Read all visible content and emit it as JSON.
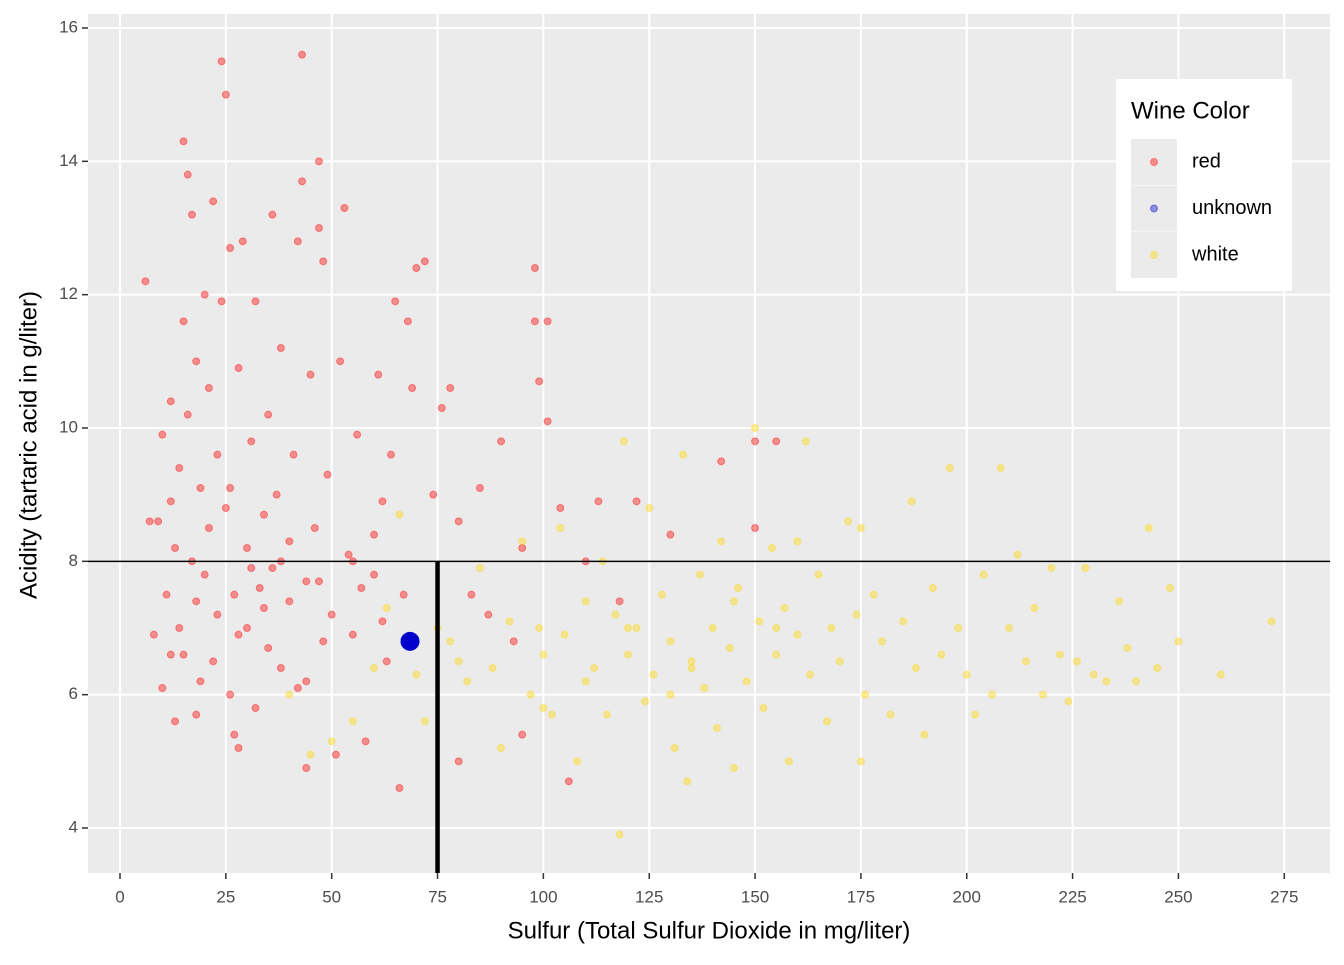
{
  "chart_data": {
    "type": "scatter",
    "x_label": "Sulfur (Total Sulfur Dioxide  in mg/liter)",
    "y_label": "Acidity (tartaric acid in g/liter)",
    "xlim": [
      -7.56,
      285.8
    ],
    "ylim": [
      3.325,
      16.21
    ],
    "xticks": [
      0,
      25,
      50,
      75,
      100,
      125,
      150,
      175,
      200,
      225,
      250,
      275
    ],
    "yticks": [
      4,
      6,
      8,
      10,
      12,
      14,
      16
    ],
    "grid": true,
    "legend": {
      "title": "Wine Color",
      "position": "top-right"
    },
    "reference_lines": {
      "hline": 8,
      "vline": {
        "x": 75,
        "ymax": 8
      }
    },
    "series": [
      {
        "name": "red",
        "color": "#ff0000",
        "opacity": 0.4,
        "size": 3.5,
        "x": [
          6,
          7,
          8,
          9,
          10,
          10,
          11,
          12,
          12,
          13,
          13,
          14,
          14,
          15,
          15,
          15,
          16,
          16,
          17,
          17,
          18,
          18,
          19,
          19,
          20,
          20,
          21,
          21,
          22,
          22,
          23,
          23,
          24,
          24,
          25,
          25,
          26,
          26,
          27,
          27,
          28,
          28,
          29,
          30,
          30,
          31,
          32,
          32,
          33,
          34,
          35,
          35,
          36,
          36,
          37,
          38,
          38,
          40,
          40,
          41,
          42,
          42,
          43,
          43,
          44,
          44,
          45,
          46,
          47,
          47,
          48,
          48,
          49,
          50,
          51,
          52,
          53,
          54,
          55,
          56,
          57,
          58,
          60,
          61,
          62,
          63,
          64,
          65,
          66,
          67,
          68,
          69,
          70,
          72,
          74,
          76,
          78,
          80,
          83,
          85,
          87,
          90,
          93,
          95,
          98,
          99,
          98,
          101,
          101,
          104,
          106,
          110,
          113,
          118,
          122,
          130,
          142,
          150,
          155,
          150,
          80,
          95,
          60,
          28,
          34,
          12,
          18,
          26,
          55,
          44,
          38,
          31,
          47,
          62
        ],
        "values": [
          12.2,
          8.6,
          6.9,
          8.6,
          6.1,
          9.9,
          7.5,
          8.9,
          10.4,
          5.6,
          8.2,
          7.0,
          9.4,
          11.6,
          14.3,
          6.6,
          13.8,
          10.2,
          13.2,
          8.0,
          7.4,
          11.0,
          9.1,
          6.2,
          12.0,
          7.8,
          10.6,
          8.5,
          6.5,
          13.4,
          9.6,
          7.2,
          15.5,
          11.9,
          15.0,
          8.8,
          6.0,
          12.7,
          5.4,
          7.5,
          10.9,
          6.9,
          12.8,
          8.2,
          7.0,
          9.8,
          5.8,
          11.9,
          7.6,
          8.7,
          6.7,
          10.2,
          13.2,
          7.9,
          9.0,
          6.4,
          11.2,
          7.4,
          8.3,
          9.6,
          6.1,
          12.8,
          15.6,
          13.7,
          7.7,
          4.9,
          10.8,
          8.5,
          14.0,
          13.0,
          6.8,
          12.5,
          9.3,
          7.2,
          5.1,
          11.0,
          13.3,
          8.1,
          6.9,
          9.9,
          7.6,
          5.3,
          8.4,
          10.8,
          7.1,
          6.5,
          9.6,
          11.9,
          4.6,
          7.5,
          11.6,
          10.6,
          12.4,
          12.5,
          9.0,
          10.3,
          10.6,
          8.6,
          7.5,
          9.1,
          7.2,
          9.8,
          6.8,
          8.2,
          12.4,
          10.7,
          11.6,
          11.6,
          10.1,
          8.8,
          4.7,
          8.0,
          8.9,
          7.4,
          8.9,
          8.4,
          9.5,
          9.8,
          9.8,
          8.5,
          5.0,
          5.4,
          7.8,
          5.2,
          7.3,
          6.6,
          5.7,
          9.1,
          8.0,
          6.2,
          8.0,
          7.9,
          7.7,
          8.9
        ]
      },
      {
        "name": "unknown",
        "color": "#0000cd",
        "opacity": 0.4,
        "size": 3.5,
        "highlight_size": 9,
        "highlight_opacity": 1,
        "x": [
          68.5
        ],
        "values": [
          6.8
        ]
      },
      {
        "name": "white",
        "color": "#ffd700",
        "opacity": 0.4,
        "size": 3.5,
        "x": [
          40,
          45,
          50,
          55,
          60,
          63,
          66,
          70,
          72,
          75,
          78,
          80,
          82,
          85,
          88,
          90,
          92,
          95,
          97,
          99,
          100,
          102,
          104,
          105,
          108,
          110,
          112,
          114,
          115,
          117,
          118,
          119,
          120,
          122,
          124,
          125,
          126,
          128,
          130,
          131,
          133,
          134,
          135,
          137,
          138,
          140,
          141,
          142,
          144,
          145,
          146,
          148,
          150,
          151,
          152,
          154,
          155,
          157,
          158,
          160,
          162,
          163,
          165,
          167,
          168,
          170,
          172,
          174,
          175,
          176,
          178,
          180,
          182,
          185,
          187,
          188,
          190,
          192,
          194,
          196,
          198,
          200,
          202,
          204,
          206,
          208,
          210,
          212,
          214,
          216,
          218,
          220,
          222,
          224,
          226,
          228,
          230,
          233,
          236,
          238,
          240,
          243,
          245,
          248,
          250,
          260,
          272,
          175,
          160,
          135,
          120,
          110,
          100,
          145,
          155,
          130
        ],
        "values": [
          6.0,
          5.1,
          5.3,
          5.6,
          6.4,
          7.3,
          8.7,
          6.3,
          5.6,
          7.0,
          6.8,
          6.5,
          6.2,
          7.9,
          6.4,
          5.2,
          7.1,
          8.3,
          6.0,
          7.0,
          6.6,
          5.7,
          8.5,
          6.9,
          5.0,
          7.4,
          6.4,
          8.0,
          5.7,
          7.2,
          3.9,
          9.8,
          6.6,
          7.0,
          5.9,
          8.8,
          6.3,
          7.5,
          6.8,
          5.2,
          9.6,
          4.7,
          6.5,
          7.8,
          6.1,
          7.0,
          5.5,
          8.3,
          6.7,
          4.9,
          7.6,
          6.2,
          10.0,
          7.1,
          5.8,
          8.2,
          6.6,
          7.3,
          5.0,
          6.9,
          9.8,
          6.3,
          7.8,
          5.6,
          7.0,
          6.5,
          8.6,
          7.2,
          5.0,
          6.0,
          7.5,
          6.8,
          5.7,
          7.1,
          8.9,
          6.4,
          5.4,
          7.6,
          6.6,
          9.4,
          7.0,
          6.3,
          5.7,
          7.8,
          6.0,
          9.4,
          7.0,
          8.1,
          6.5,
          7.3,
          6.0,
          7.9,
          6.6,
          5.9,
          6.5,
          7.9,
          6.3,
          6.2,
          7.4,
          6.7,
          6.2,
          8.5,
          6.4,
          7.6,
          6.8,
          6.3,
          7.1,
          8.5,
          8.3,
          6.4,
          7.0,
          6.2,
          5.8,
          7.4,
          7.0,
          6.0
        ]
      }
    ]
  }
}
